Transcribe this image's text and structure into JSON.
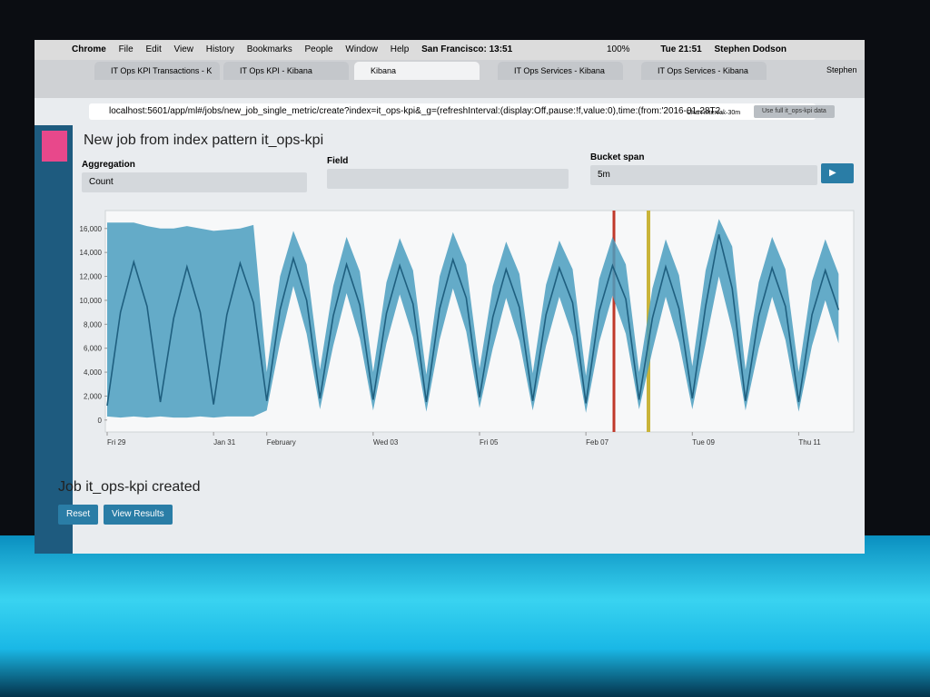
{
  "menu_bar": {
    "items": [
      "Chrome",
      "File",
      "Edit",
      "View",
      "History",
      "Bookmarks",
      "People",
      "Window",
      "Help"
    ],
    "location": "San Francisco: 13:51",
    "battery": "100%",
    "clock": "Tue 21:51",
    "user": "Stephen Dodson"
  },
  "tabs": [
    "IT Ops KPI Transactions - K",
    "IT Ops KPI - Kibana",
    "Kibana",
    "IT Ops Services - Kibana",
    "IT Ops Services - Kibana"
  ],
  "profile": "Stephen",
  "url": "localhost:5601/app/ml#/jobs/new_job_single_metric/create?index=it_ops-kpi&_g=(refreshInterval:(display:Off,pause:!f,value:0),time:(from:'2016-01-28T2...",
  "chart_interval": "Chart interval: 30m",
  "full_data_button": "Use full it_ops-kpi data",
  "page_title": "New job from index pattern it_ops-kpi",
  "form": {
    "aggregation": {
      "label": "Aggregation",
      "value": "Count"
    },
    "field": {
      "label": "Field"
    },
    "bucket_span": {
      "label": "Bucket span",
      "value": "5m"
    }
  },
  "chart": {
    "type": "line",
    "x": [
      0,
      1,
      2,
      3,
      4,
      5,
      6,
      7,
      8,
      9,
      10,
      11,
      12,
      13,
      14,
      15,
      16,
      17,
      18,
      19,
      20,
      21,
      22,
      23,
      24,
      25,
      26,
      27,
      28,
      29,
      30,
      31,
      32,
      33,
      34,
      35,
      36,
      37,
      38,
      39,
      40,
      41,
      42,
      43,
      44,
      45,
      46,
      47,
      48,
      49,
      50,
      51,
      52,
      53,
      54,
      55
    ],
    "values": [
      1200,
      9000,
      13200,
      9500,
      1500,
      8500,
      12800,
      9000,
      1300,
      8800,
      13100,
      9800,
      1600,
      9200,
      13500,
      10000,
      1800,
      8700,
      13000,
      9600,
      1700,
      8900,
      12900,
      9700,
      1500,
      9300,
      13400,
      10200,
      1900,
      8600,
      12600,
      9400,
      1600,
      8800,
      12700,
      9800,
      1400,
      9100,
      12900,
      10100,
      1700,
      8500,
      12800,
      9300,
      1800,
      9500,
      15500,
      11000,
      1600,
      8700,
      12700,
      9500,
      1500,
      8800,
      12500,
      9200
    ],
    "upper": [
      16500,
      16500,
      16500,
      16200,
      16000,
      16000,
      16200,
      16000,
      15800,
      15900,
      16000,
      16300,
      4000,
      12000,
      15800,
      13000,
      4200,
      11200,
      15300,
      12400,
      4000,
      11500,
      15200,
      12500,
      3800,
      12000,
      15700,
      13000,
      4300,
      11200,
      14900,
      12200,
      3900,
      11300,
      15000,
      12600,
      3700,
      11800,
      15300,
      13000,
      4000,
      11000,
      15100,
      12100,
      4500,
      12500,
      16800,
      14500,
      4200,
      11500,
      15300,
      12600,
      4000,
      11600,
      15100,
      12200
    ],
    "lower": [
      300,
      200,
      300,
      200,
      300,
      200,
      200,
      300,
      200,
      300,
      300,
      300,
      800,
      6500,
      11200,
      7200,
      900,
      6200,
      10600,
      6800,
      800,
      6400,
      10500,
      6900,
      700,
      6700,
      11000,
      7400,
      1000,
      6000,
      10200,
      6600,
      800,
      6200,
      10300,
      7000,
      600,
      6500,
      10400,
      7200,
      900,
      5800,
      10300,
      6500,
      900,
      6400,
      12000,
      7500,
      800,
      6000,
      10300,
      6700,
      700,
      6200,
      10000,
      6400
    ],
    "color": "#1f5f7f",
    "band_color": "#4a9dbf",
    "xlim": [
      0,
      56
    ],
    "xticks": [
      {
        "value": 0,
        "label": "Fri 29"
      },
      {
        "value": 8,
        "label": "Jan 31"
      },
      {
        "value": 12,
        "label": "February"
      },
      {
        "value": 20,
        "label": "Wed 03"
      },
      {
        "value": 28,
        "label": "Fri 05"
      },
      {
        "value": 36,
        "label": "Feb 07"
      },
      {
        "value": 44,
        "label": "Tue 09"
      },
      {
        "value": 52,
        "label": "Thu 11"
      }
    ],
    "ylim": [
      -1000,
      17500
    ],
    "yticks": [
      0,
      {
        "value": 2000,
        "label": "2,000"
      },
      {
        "value": 4000,
        "label": "4,000"
      },
      {
        "value": 6000,
        "label": "6,000"
      },
      {
        "value": 8000,
        "label": "8,000"
      },
      {
        "value": 10000,
        "label": "10,000"
      },
      {
        "value": 12000,
        "label": "12,000"
      },
      {
        "value": 14000,
        "label": "14,000"
      },
      {
        "value": 16000,
        "label": "16,000"
      }
    ]
  },
  "status": "Job it_ops-kpi created",
  "buttons": [
    "Reset",
    "View Results"
  ]
}
